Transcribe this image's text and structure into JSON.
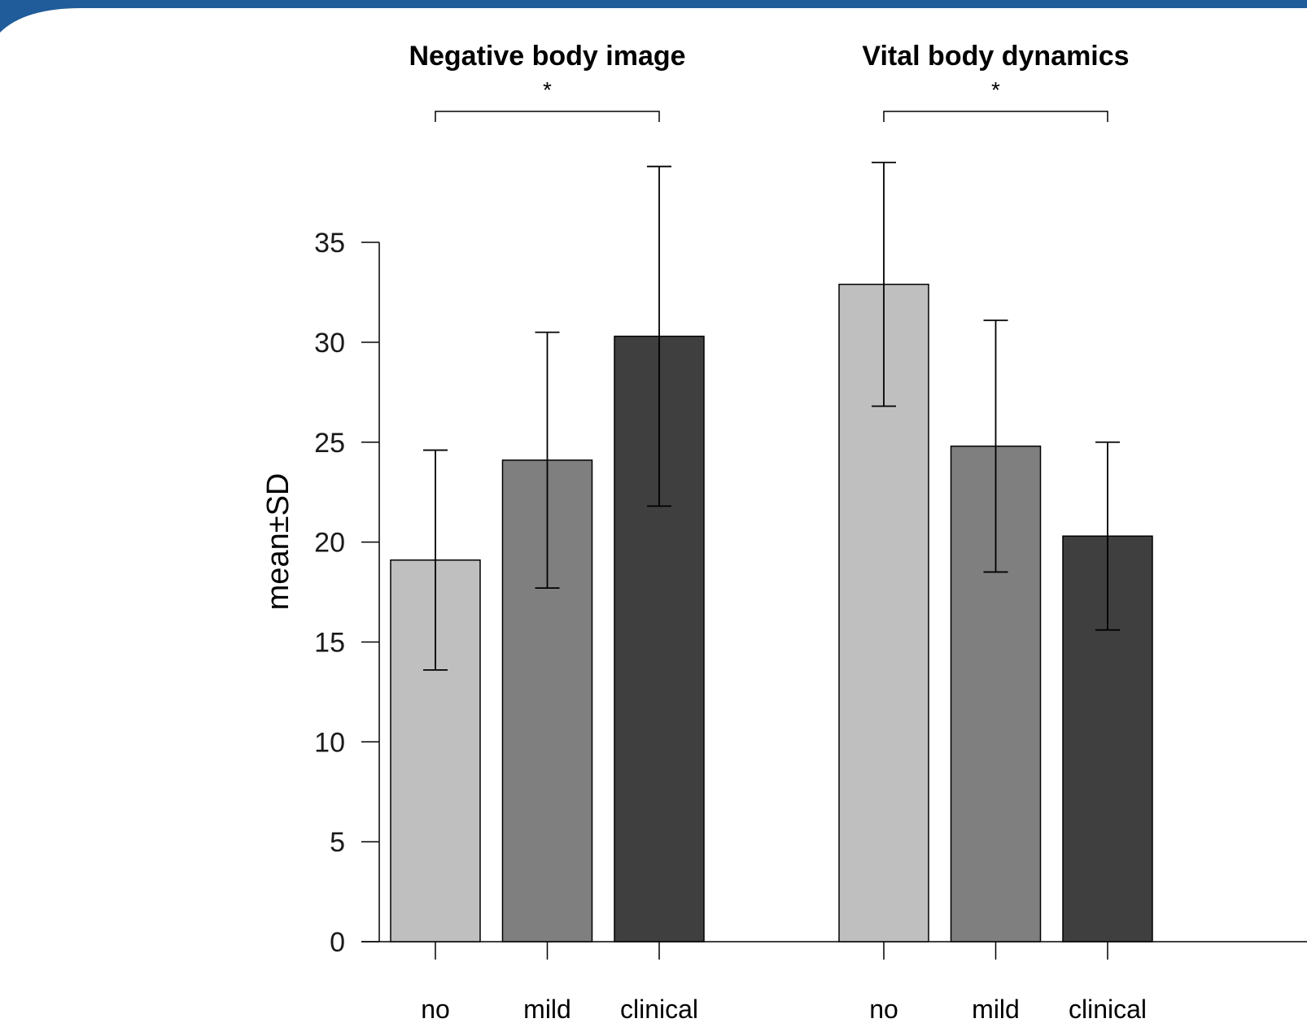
{
  "colors": {
    "banner": "#1f5c99",
    "bar_no": "#bfbfbf",
    "bar_mild": "#7f7f7f",
    "bar_clinical": "#3f3f3f",
    "stroke": "#000000"
  },
  "chart_data": {
    "type": "bar",
    "ylabel": "mean±SD",
    "ylim": [
      0,
      35
    ],
    "yticks": [
      0,
      5,
      10,
      15,
      20,
      25,
      30,
      35
    ],
    "groups": [
      {
        "title": "Negative body image",
        "significance": "*",
        "categories": [
          "no",
          "mild",
          "clinical"
        ],
        "means": [
          19.1,
          24.1,
          30.3
        ],
        "sd": [
          5.5,
          6.4,
          8.5
        ]
      },
      {
        "title": "Vital body dynamics",
        "significance": "*",
        "categories": [
          "no",
          "mild",
          "clinical"
        ],
        "means": [
          32.9,
          24.8,
          20.3
        ],
        "sd": [
          6.1,
          6.3,
          4.7
        ]
      }
    ]
  }
}
